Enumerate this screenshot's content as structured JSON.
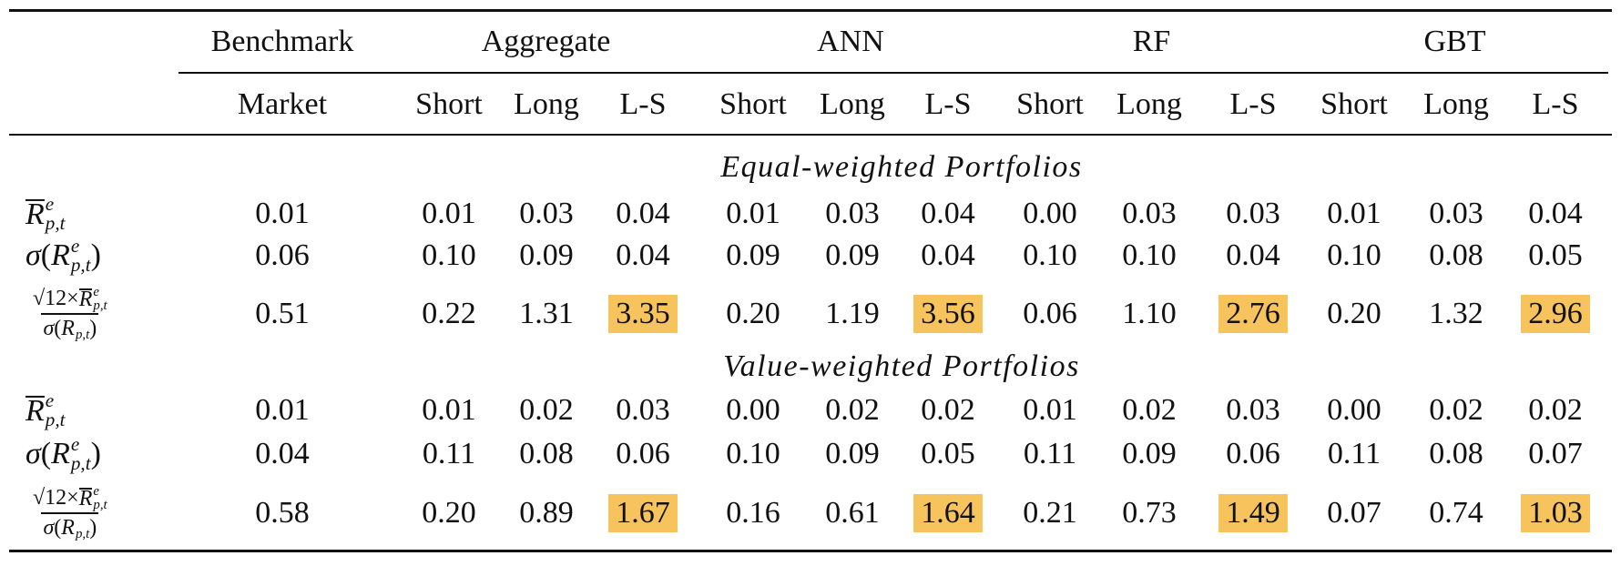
{
  "table": {
    "highlight_color": "#f7c35c",
    "groups": [
      "Benchmark",
      "Aggregate",
      "ANN",
      "RF",
      "GBT"
    ],
    "group_sizes": [
      1,
      3,
      3,
      3,
      3
    ],
    "columns": [
      "Market",
      "Short",
      "Long",
      "L-S",
      "Short",
      "Long",
      "L-S",
      "Short",
      "Long",
      "L-S",
      "Short",
      "Long",
      "L-S"
    ],
    "sections": [
      {
        "title": "Equal-weighted Portfolios",
        "rows": [
          {
            "label": {
              "segments": [
                {
                  "var": "R",
                  "overline": true
                },
                {
                  "sup": "e",
                  "sub": "p,t"
                }
              ]
            },
            "values": [
              "0.01",
              "0.01",
              "0.03",
              "0.04",
              "0.01",
              "0.03",
              "0.04",
              "0.00",
              "0.03",
              "0.03",
              "0.01",
              "0.03",
              "0.04"
            ]
          },
          {
            "label": {
              "segments": [
                {
                  "var": "σ"
                },
                {
                  "text": "("
                },
                {
                  "var": "R"
                },
                {
                  "sup": "e",
                  "sub": "p,t"
                },
                {
                  "text": ")"
                }
              ]
            },
            "values": [
              "0.06",
              "0.10",
              "0.09",
              "0.04",
              "0.09",
              "0.09",
              "0.04",
              "0.10",
              "0.10",
              "0.04",
              "0.10",
              "0.08",
              "0.05"
            ]
          },
          {
            "label": {
              "numerator": [
                {
                  "text": "√12×"
                },
                {
                  "var": "R",
                  "overline": true
                },
                {
                  "sup": "e",
                  "sub": "p,t"
                }
              ],
              "denominator": [
                {
                  "var": "σ"
                },
                {
                  "text": "("
                },
                {
                  "var": "R"
                },
                {
                  "sub": "p,t"
                },
                {
                  "text": ")"
                }
              ]
            },
            "values": [
              "0.51",
              "0.22",
              "1.31",
              "3.35",
              "0.20",
              "1.19",
              "3.56",
              "0.06",
              "1.10",
              "2.76",
              "0.20",
              "1.32",
              "2.96"
            ],
            "highlighted": [
              false,
              false,
              false,
              true,
              false,
              false,
              true,
              false,
              false,
              true,
              false,
              false,
              true
            ]
          }
        ]
      },
      {
        "title": "Value-weighted Portfolios",
        "rows": [
          {
            "label": {
              "segments": [
                {
                  "var": "R",
                  "overline": true
                },
                {
                  "sup": "e",
                  "sub": "p,t"
                }
              ]
            },
            "values": [
              "0.01",
              "0.01",
              "0.02",
              "0.03",
              "0.00",
              "0.02",
              "0.02",
              "0.01",
              "0.02",
              "0.03",
              "0.00",
              "0.02",
              "0.02"
            ]
          },
          {
            "label": {
              "segments": [
                {
                  "var": "σ"
                },
                {
                  "text": "("
                },
                {
                  "var": "R"
                },
                {
                  "sup": "e",
                  "sub": "p,t"
                },
                {
                  "text": ")"
                }
              ]
            },
            "values": [
              "0.04",
              "0.11",
              "0.08",
              "0.06",
              "0.10",
              "0.09",
              "0.05",
              "0.11",
              "0.09",
              "0.06",
              "0.11",
              "0.08",
              "0.07"
            ]
          },
          {
            "label": {
              "numerator": [
                {
                  "text": "√12×"
                },
                {
                  "var": "R",
                  "overline": true
                },
                {
                  "sup": "e",
                  "sub": "p,t"
                }
              ],
              "denominator": [
                {
                  "var": "σ"
                },
                {
                  "text": "("
                },
                {
                  "var": "R"
                },
                {
                  "sub": "p,t"
                },
                {
                  "text": ")"
                }
              ]
            },
            "values": [
              "0.58",
              "0.20",
              "0.89",
              "1.67",
              "0.16",
              "0.61",
              "1.64",
              "0.21",
              "0.73",
              "1.49",
              "0.07",
              "0.74",
              "1.03"
            ],
            "highlighted": [
              false,
              false,
              false,
              true,
              false,
              false,
              true,
              false,
              false,
              true,
              false,
              false,
              true
            ]
          }
        ]
      }
    ]
  }
}
